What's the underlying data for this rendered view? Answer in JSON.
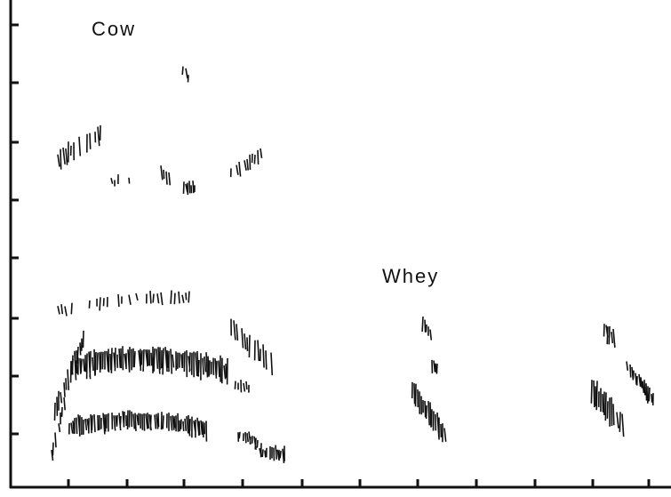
{
  "annotations": {
    "left": "Cow",
    "right": "Whey"
  }
}
